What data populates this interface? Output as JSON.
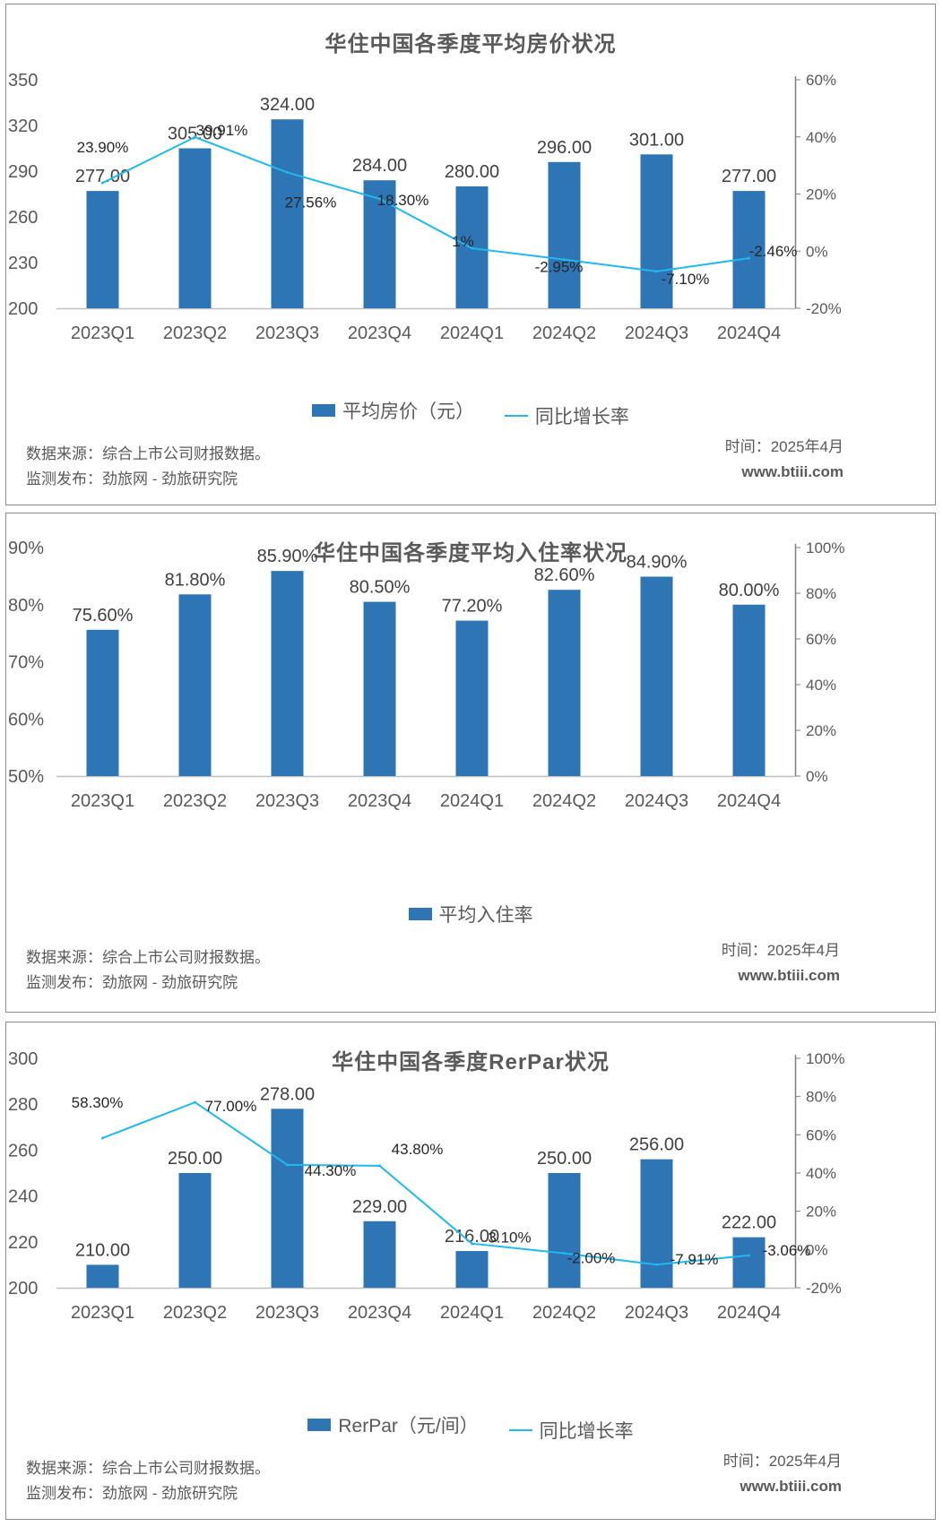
{
  "chart_data": [
    {
      "type": "bar",
      "title": "华住中国各季度平均房价状况",
      "categories": [
        "2023Q1",
        "2023Q2",
        "2023Q3",
        "2023Q4",
        "2024Q1",
        "2024Q2",
        "2024Q3",
        "2024Q4"
      ],
      "series": [
        {
          "name": "平均房价（元）",
          "type": "bar",
          "axis": "left",
          "values": [
            277,
            305,
            324,
            284,
            280,
            296,
            301,
            277
          ],
          "labels": [
            "277.00",
            "305.00",
            "324.00",
            "284.00",
            "280.00",
            "296.00",
            "301.00",
            "277.00"
          ]
        },
        {
          "name": "同比增长率",
          "type": "line",
          "axis": "right",
          "values": [
            23.9,
            39.91,
            27.56,
            18.3,
            1,
            -2.95,
            -7.1,
            -2.46
          ],
          "labels": [
            "23.90%",
            "39.91%",
            "27.56%",
            "18.30%",
            "1%",
            "-2.95%",
            "-7.10%",
            "-2.46%"
          ]
        }
      ],
      "ylim": [
        200,
        350
      ],
      "yticks": [
        "200",
        "230",
        "260",
        "290",
        "320",
        "350"
      ],
      "y2lim": [
        -20,
        60
      ],
      "y2ticks": [
        "-20%",
        "0%",
        "20%",
        "40%",
        "60%"
      ],
      "colors": {
        "bar": "#2e75b6",
        "line": "#1fb8ef"
      }
    },
    {
      "type": "bar",
      "title": "华住中国各季度平均入住率状况",
      "categories": [
        "2023Q1",
        "2023Q2",
        "2023Q3",
        "2023Q4",
        "2024Q1",
        "2024Q2",
        "2024Q3",
        "2024Q4"
      ],
      "series": [
        {
          "name": "平均入住率",
          "type": "bar",
          "axis": "left",
          "values": [
            75.6,
            81.8,
            85.9,
            80.5,
            77.2,
            82.6,
            84.9,
            80.0
          ],
          "labels": [
            "75.60%",
            "81.80%",
            "85.90%",
            "80.50%",
            "77.20%",
            "82.60%",
            "84.90%",
            "80.00%"
          ]
        }
      ],
      "ylim": [
        50,
        90
      ],
      "yticks": [
        "50%",
        "60%",
        "70%",
        "80%",
        "90%"
      ],
      "y2lim": [
        0,
        100
      ],
      "y2ticks": [
        "0%",
        "20%",
        "40%",
        "60%",
        "80%",
        "100%"
      ],
      "colors": {
        "bar": "#2e75b6"
      }
    },
    {
      "type": "bar",
      "title": "华住中国各季度RerPar状况",
      "categories": [
        "2023Q1",
        "2023Q2",
        "2023Q3",
        "2023Q4",
        "2024Q1",
        "2024Q2",
        "2024Q3",
        "2024Q4"
      ],
      "series": [
        {
          "name": "RerPar（元/间）",
          "type": "bar",
          "axis": "left",
          "values": [
            210,
            250,
            278,
            229,
            216,
            250,
            256,
            222
          ],
          "labels": [
            "210.00",
            "250.00",
            "278.00",
            "229.00",
            "216.00",
            "250.00",
            "256.00",
            "222.00"
          ]
        },
        {
          "name": "同比增长率",
          "type": "line",
          "axis": "right",
          "values": [
            58.3,
            77.0,
            44.3,
            43.8,
            3.1,
            -2.0,
            -7.91,
            -3.06
          ],
          "labels": [
            "58.30%",
            "77.00%",
            "44.30%",
            "43.80%",
            "3.10%",
            "-2.00%",
            "-7.91%",
            "-3.06%"
          ]
        }
      ],
      "ylim": [
        200,
        300
      ],
      "yticks": [
        "200",
        "220",
        "240",
        "260",
        "280",
        "300"
      ],
      "y2lim": [
        -20,
        100
      ],
      "y2ticks": [
        "-20%",
        "0%",
        "20%",
        "40%",
        "60%",
        "80%",
        "100%"
      ],
      "colors": {
        "bar": "#2e75b6",
        "line": "#1fb8ef"
      }
    }
  ],
  "footer": {
    "source": "数据来源：综合上市公司财报数据。",
    "publisher": "监测发布：劲旅网 - 劲旅研究院",
    "time": "时间：2025年4月",
    "site": "www.btiii.com"
  }
}
